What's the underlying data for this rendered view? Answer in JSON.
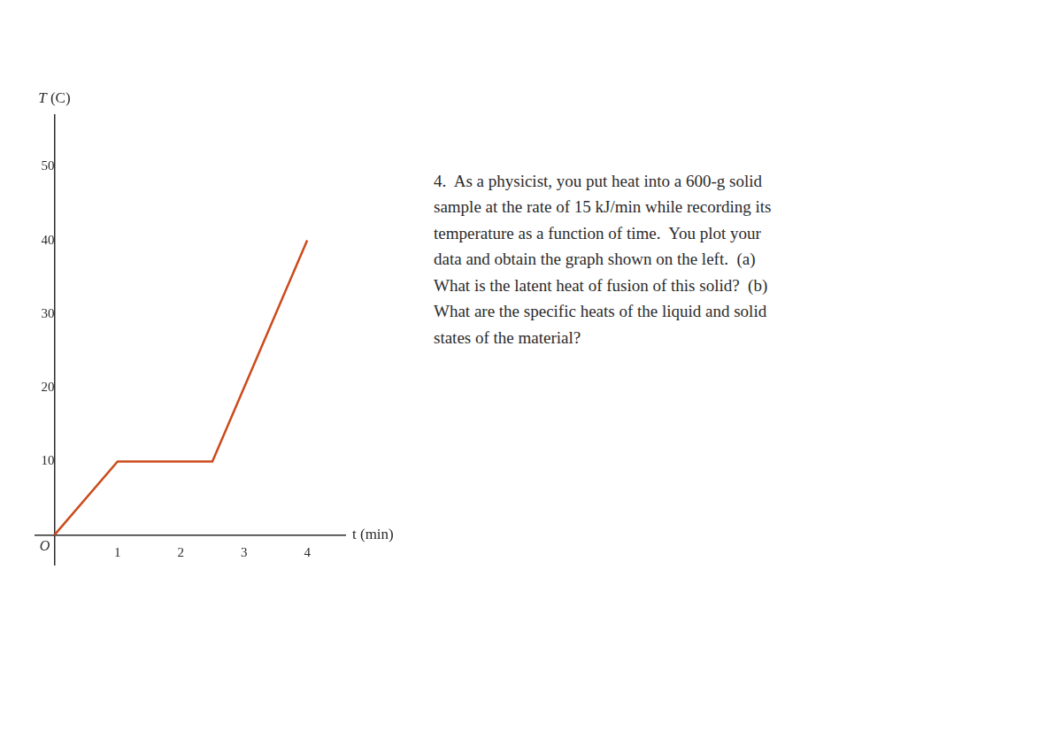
{
  "chart_data": {
    "type": "line",
    "x": [
      0,
      1,
      2.5,
      4
    ],
    "values": [
      0,
      10,
      10,
      40
    ],
    "color": "#CC4A1A",
    "xlim": [
      -0.3,
      4.6
    ],
    "ylim": [
      -4,
      57
    ],
    "xticks": [
      1,
      2,
      3,
      4
    ],
    "yticks": [
      10,
      20,
      30,
      40,
      50
    ],
    "grid": false,
    "x_label": "t (min)",
    "y_label": "T (C)",
    "origin_label": "O",
    "annotations": [
      "4.  As a physicist, you put heat into a 600-g solid",
      "sample at the rate of 15 kJ/min while recording its",
      "temperature as a function of time.  You plot your",
      "data and obtain the graph shown on the left.  (a)",
      "What is the latent heat of fusion of this solid?  (b)",
      "What are the specific heats of the liquid and solid",
      "states of the material?"
    ]
  }
}
